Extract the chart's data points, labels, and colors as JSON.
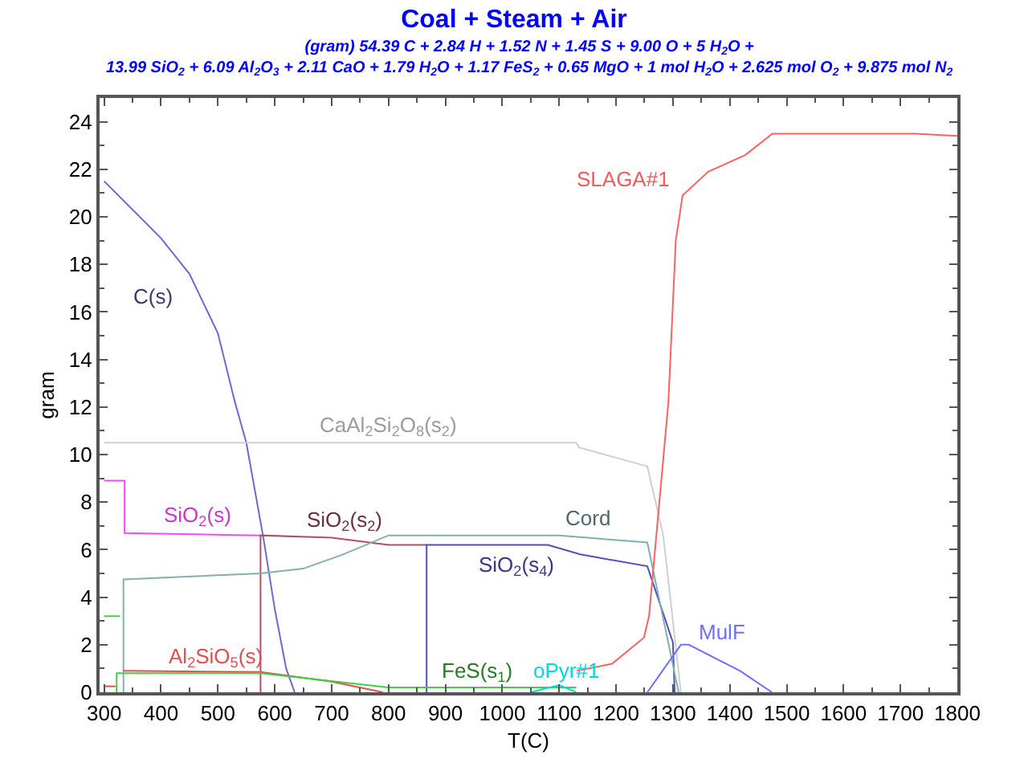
{
  "chart_data": {
    "type": "line",
    "title": "Coal + Steam + Air",
    "subtitle": "(gram) 54.39 C + 2.84 H + 1.52 N + 1.45 S + 9.00 O + 5 H$_{2}$O +\n13.99 SiO$_{2}$ + 6.09 Al$_{2}$O$_{3}$ + 2.11 CaO + 1.79 H$_{2}$O + 1.17 FeS$_{2}$ + 0.65 MgO + 1 mol H$_{2}$O + 2.625 mol O$_{2}$ + 9.875 mol N$_{2}$",
    "xlabel": "T(C)",
    "ylabel": "gram",
    "xlim": [
      292,
      1800
    ],
    "xticks": [
      300,
      400,
      500,
      600,
      700,
      800,
      900,
      1000,
      1100,
      1200,
      1300,
      1400,
      1500,
      1600,
      1700,
      1800
    ],
    "ylim": [
      0,
      25
    ],
    "yticks": [
      0,
      2,
      4,
      6,
      8,
      10,
      12,
      14,
      16,
      18,
      20,
      22,
      24
    ],
    "legend": false,
    "marker": "none",
    "line_style": "solid",
    "series": [
      {
        "name": "C(s)",
        "color": "#6a6ad0",
        "x": [
          300,
          400,
          450,
          500,
          530,
          550,
          580,
          600,
          620,
          635
        ],
        "values": [
          21.5,
          19.1,
          17.6,
          15.1,
          12.2,
          10.5,
          6.5,
          3.5,
          1.0,
          0
        ]
      },
      {
        "name": "CaAl$_{2}$Si$_{2}$O$_{8}$(s$_{2}$)",
        "color": "#d0d0d0",
        "x": [
          300,
          1130,
          1135,
          1255,
          1283,
          1314
        ],
        "values": [
          10.5,
          10.5,
          10.3,
          9.5,
          6.6,
          0
        ]
      },
      {
        "name": "SiO$_{2}$(s)",
        "color": "#ff44ff",
        "x": [
          300,
          336,
          336,
          575
        ],
        "values": [
          8.9,
          8.9,
          6.7,
          6.6
        ]
      },
      {
        "name": "SiO$_{2}$(s$_{2}$)",
        "color": "#b05060",
        "x": [
          575,
          575,
          700,
          800,
          867
        ],
        "values": [
          0,
          6.6,
          6.5,
          6.2,
          6.2
        ]
      },
      {
        "name": "SiO$_{2}$(s$_{4}$)",
        "color": "#5050c0",
        "x": [
          867,
          867,
          1080,
          1137,
          1255,
          1300,
          1303
        ],
        "values": [
          0,
          6.2,
          6.2,
          5.8,
          5.3,
          2.1,
          0
        ]
      },
      {
        "name": "Cord",
        "color": "#80b0b0",
        "x": [
          334,
          334,
          575,
          650,
          720,
          800,
          1100,
          1150,
          1255,
          1310
        ],
        "values": [
          0,
          4.75,
          5.0,
          5.2,
          5.8,
          6.6,
          6.6,
          6.5,
          6.3,
          0
        ]
      },
      {
        "name": "SLAGA#1",
        "color": "#ff6060",
        "x": [
          1131,
          1193,
          1249,
          1258,
          1292,
          1305,
          1317,
          1362,
          1427,
          1475,
          1727,
          1800
        ],
        "values": [
          0.9,
          1.2,
          2.3,
          3.2,
          12.2,
          19.0,
          20.9,
          21.9,
          22.6,
          23.5,
          23.5,
          23.4
        ]
      },
      {
        "name": "MulF",
        "color": "#7070ff",
        "x": [
          1255,
          1314,
          1328,
          1418,
          1474
        ],
        "values": [
          0,
          2.0,
          2.0,
          0.9,
          0
        ]
      },
      {
        "name": "Al$_{2}$SiO$_{5}$(s)",
        "color": "#e05050",
        "x": [
          300,
          320,
          null,
          334,
          575,
          700,
          790
        ],
        "values": [
          0.25,
          0.25,
          null,
          0.9,
          0.85,
          0.45,
          0
        ]
      },
      {
        "name": "FeS(s$_{1}$)",
        "color": "#40d040",
        "x": [
          300,
          328,
          null,
          322,
          322,
          575,
          800,
          1130
        ],
        "values": [
          3.2,
          3.2,
          null,
          0,
          0.8,
          0.8,
          0.2,
          0.2
        ]
      },
      {
        "name": "oPyr#1",
        "color": "#00d8e0",
        "x": [
          1050,
          1100,
          1130
        ],
        "values": [
          0,
          0.3,
          0
        ]
      }
    ]
  }
}
